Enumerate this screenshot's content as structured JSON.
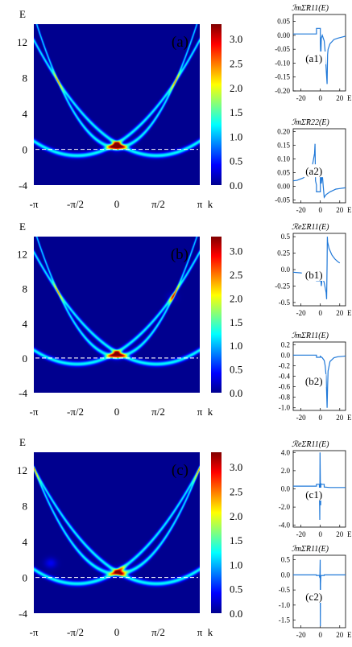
{
  "figure": {
    "units": {
      "pi": "π",
      "k": "k",
      "E": "E"
    }
  },
  "chart_data": [
    {
      "type": "heatmap",
      "panel_label": "(a)",
      "ylabel": "E",
      "xlabel": "k",
      "x_tick_labels": [
        "-π",
        "-π/2",
        "0",
        "π/2",
        "π"
      ],
      "y_tick_labels": [
        "12",
        "8",
        "4",
        "0",
        "-4"
      ],
      "ylim": [
        -4,
        14
      ],
      "xlim": [
        -3.1416,
        3.1416
      ],
      "colorbar_ticks": [
        "3.0",
        "2.5",
        "2.0",
        "1.5",
        "1.0",
        "0.5",
        "0.0"
      ],
      "colorbar_range": [
        0,
        3.3
      ],
      "bands": [
        {
          "a": 1.5,
          "kc": 0.0,
          "e0": 0.2
        },
        {
          "a": 0.6,
          "kc": 1.5,
          "e0": -0.7
        },
        {
          "a": 0.6,
          "kc": -1.5,
          "e0": -0.7
        }
      ],
      "hot_spots": [
        {
          "k": 0.0,
          "E": 0.3,
          "strength": 1.0
        }
      ],
      "dashed_line_E": 0.0
    },
    {
      "type": "line",
      "panel_label": "(a1)",
      "ylabel": "ℐmΣ̃R11(E)",
      "xlabel": "E",
      "x_tick_labels": [
        "-20",
        "0",
        "20"
      ],
      "y_tick_labels": [
        "0.05",
        "0.00",
        "-0.05",
        "-0.10",
        "-0.15",
        "-0.20"
      ],
      "xlim": [
        -28,
        26
      ],
      "ylim": [
        -0.2,
        0.075
      ],
      "x": [
        -28,
        -10,
        -4,
        -4,
        0,
        0,
        0.5,
        1,
        2,
        4,
        5,
        6,
        7,
        7.2,
        7.5,
        8,
        10,
        14,
        18,
        24,
        26
      ],
      "values": [
        0.005,
        0.005,
        0.005,
        0.025,
        0.025,
        -0.03,
        -0.08,
        -0.01,
        0.0,
        -0.02,
        -0.06,
        -0.12,
        -0.175,
        -0.12,
        -0.07,
        -0.05,
        -0.03,
        -0.015,
        -0.01,
        -0.005,
        -0.003
      ]
    },
    {
      "type": "line",
      "panel_label": "(a2)",
      "ylabel": "ℐmΣ̃R22(E)",
      "xlabel": "E",
      "x_tick_labels": [
        "-20",
        "0",
        "20"
      ],
      "y_tick_labels": [
        "0.20",
        "0.15",
        "0.10",
        "0.05",
        "0.00",
        "-0.05"
      ],
      "xlim": [
        -28,
        26
      ],
      "ylim": [
        -0.06,
        0.21
      ],
      "x": [
        -28,
        -24,
        -18,
        -14,
        -10,
        -8,
        -6,
        -5.5,
        -5,
        -4,
        -4,
        0,
        0,
        0.5,
        1,
        2,
        3,
        4,
        6,
        10,
        16,
        20,
        24,
        26
      ],
      "values": [
        0.02,
        0.022,
        0.03,
        0.04,
        0.055,
        0.08,
        0.12,
        0.155,
        0.02,
        0.005,
        -0.02,
        -0.02,
        0.05,
        0.065,
        0.01,
        0.045,
        0.0,
        -0.04,
        -0.03,
        -0.02,
        -0.01,
        -0.008,
        -0.006,
        -0.005
      ]
    },
    {
      "type": "heatmap",
      "panel_label": "(b)",
      "ylabel": "E",
      "xlabel": "k",
      "x_tick_labels": [
        "-π",
        "-π/2",
        "0",
        "π/2",
        "π"
      ],
      "y_tick_labels": [
        "12",
        "8",
        "4",
        "0",
        "-4"
      ],
      "ylim": [
        -4,
        14
      ],
      "xlim": [
        -3.1416,
        3.1416
      ],
      "colorbar_ticks": [
        "3.0",
        "2.5",
        "2.0",
        "1.5",
        "1.0",
        "0.5",
        "0.0"
      ],
      "colorbar_range": [
        0,
        3.3
      ],
      "bands": [
        {
          "a": 1.5,
          "kc": 0.0,
          "e0": 0.2
        },
        {
          "a": 0.6,
          "kc": 1.5,
          "e0": -0.7
        },
        {
          "a": 0.6,
          "kc": -1.5,
          "e0": -0.7
        }
      ],
      "hot_spots": [
        {
          "k": 0.0,
          "E": 0.3,
          "strength": 0.8
        },
        {
          "k": 2.1,
          "E": 7.0,
          "strength": 0.45
        }
      ],
      "dashed_line_E": 0.0
    },
    {
      "type": "line",
      "panel_label": "(b1)",
      "ylabel": "ℛeΣ̃R11(E)",
      "xlabel": "E",
      "x_tick_labels": [
        "-20",
        "0",
        "20"
      ],
      "y_tick_labels": [
        "0.5",
        "0.25",
        "0.0",
        "-0.25",
        "-0.5"
      ],
      "xlim": [
        -28,
        26
      ],
      "ylim": [
        -0.55,
        0.55
      ],
      "x": [
        -28,
        -20,
        -10,
        -5,
        -4,
        -4,
        0,
        0,
        1,
        2,
        4,
        6,
        6.5,
        7,
        7.2,
        7.5,
        9,
        12,
        15,
        18,
        20
      ],
      "values": [
        -0.04,
        -0.05,
        -0.07,
        -0.1,
        -0.1,
        -0.17,
        -0.17,
        -0.05,
        -0.25,
        -0.1,
        -0.2,
        -0.35,
        -0.45,
        0.1,
        0.5,
        0.42,
        0.32,
        0.22,
        0.16,
        0.12,
        0.1
      ]
    },
    {
      "type": "line",
      "panel_label": "(b2)",
      "ylabel": "ℐmΣ̃R11(E)",
      "xlabel": "E",
      "x_tick_labels": [
        "-20",
        "0",
        "20"
      ],
      "y_tick_labels": [
        "0.2",
        "0.0",
        "-0.2",
        "-0.4",
        "-0.6",
        "-0.8",
        "-1.0"
      ],
      "xlim": [
        -28,
        26
      ],
      "ylim": [
        -1.05,
        0.25
      ],
      "x": [
        -28,
        -10,
        -4,
        -4,
        0,
        0,
        2,
        4,
        5,
        6,
        7,
        7.5,
        8,
        10,
        14,
        18,
        24,
        26
      ],
      "values": [
        0.0,
        0.0,
        0.0,
        -0.04,
        -0.04,
        -0.02,
        -0.05,
        -0.1,
        -0.2,
        -0.4,
        -1.0,
        -0.6,
        -0.3,
        -0.12,
        -0.05,
        -0.03,
        -0.02,
        -0.015
      ]
    },
    {
      "type": "heatmap",
      "panel_label": "(c)",
      "ylabel": "E",
      "xlabel": "k",
      "x_tick_labels": [
        "-π",
        "-π/2",
        "0",
        "π/2",
        "π"
      ],
      "y_tick_labels": [
        "12",
        "8",
        "4",
        "0",
        "-4"
      ],
      "ylim": [
        -4,
        14
      ],
      "xlim": [
        -3.1416,
        3.1416
      ],
      "colorbar_ticks": [
        "3.0",
        "2.5",
        "2.0",
        "1.5",
        "1.0",
        "0.5",
        "0.0"
      ],
      "colorbar_range": [
        0,
        3.3
      ],
      "bands": [
        {
          "a": 1.2,
          "kc": 0.0,
          "e0": 0.4
        },
        {
          "a": 0.6,
          "kc": 1.5,
          "e0": -0.7
        },
        {
          "a": 0.6,
          "kc": -1.5,
          "e0": -0.7
        }
      ],
      "hot_spots": [
        {
          "k": 0.15,
          "E": 0.8,
          "strength": 0.7
        },
        {
          "k": -2.5,
          "E": 1.6,
          "strength": 0.9
        }
      ],
      "dashed_line_E": 0.0
    },
    {
      "type": "line",
      "panel_label": "(c1)",
      "ylabel": "ℛeΣ̃R11(E)",
      "xlabel": "E",
      "x_tick_labels": [
        "-20",
        "0",
        "20"
      ],
      "y_tick_labels": [
        "4.0",
        "2.0",
        "0.0",
        "-2.0",
        "-4.0"
      ],
      "xlim": [
        -28,
        26
      ],
      "ylim": [
        -4.2,
        4.2
      ],
      "x": [
        -28,
        -10,
        -4,
        -4,
        -1,
        -0.6,
        -0.3,
        0,
        0.3,
        0.6,
        1,
        4,
        4,
        10,
        20,
        26
      ],
      "values": [
        0.3,
        0.3,
        0.3,
        0.5,
        0.5,
        -3.4,
        4.0,
        0.8,
        -1.8,
        0.6,
        0.5,
        0.5,
        0.2,
        0.15,
        0.15,
        0.15
      ]
    },
    {
      "type": "line",
      "panel_label": "(c2)",
      "ylabel": "ℐmΣ̃R11(E)",
      "xlabel": "E",
      "x_tick_labels": [
        "-20",
        "0",
        "20"
      ],
      "y_tick_labels": [
        "0.5",
        "0.0",
        "-0.5",
        "-1.0",
        "-1.5"
      ],
      "xlim": [
        -28,
        26
      ],
      "ylim": [
        -1.75,
        0.65
      ],
      "x": [
        -28,
        -10,
        -4,
        -4,
        -1,
        -0.5,
        -0.2,
        0,
        0.2,
        0.5,
        1,
        4,
        4,
        10,
        20,
        26
      ],
      "values": [
        0.0,
        0.0,
        0.0,
        -0.02,
        -0.02,
        -0.1,
        0.5,
        -1.7,
        -0.3,
        -0.05,
        -0.02,
        -0.02,
        0.0,
        0.0,
        0.0,
        0.0
      ]
    }
  ]
}
